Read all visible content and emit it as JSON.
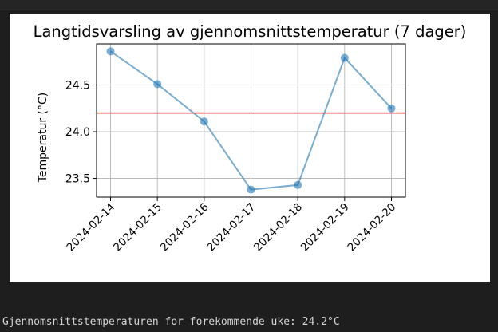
{
  "chart_data": {
    "type": "line",
    "title": "Langtidsvarsling av gjennomsnittstemperatur (7 dager)",
    "xlabel": "",
    "ylabel": "Temperatur (°C)",
    "categories": [
      "2024-02-14",
      "2024-02-15",
      "2024-02-16",
      "2024-02-17",
      "2024-02-18",
      "2024-02-19",
      "2024-02-20"
    ],
    "series": [
      {
        "values": [
          24.86,
          24.51,
          24.11,
          23.38,
          23.43,
          24.79,
          24.25
        ]
      }
    ],
    "reference_line": {
      "y": 24.2
    },
    "ylim": [
      23.3,
      24.94
    ],
    "yticks": [
      "23.5",
      "24.0",
      "24.5"
    ],
    "ytick_values": [
      23.5,
      24.0,
      24.5
    ],
    "grid": true,
    "colors": {
      "series": "#1f77b4",
      "reference_line": "#e41a1c"
    }
  },
  "output": {
    "text": "Gjennomsnittstemperaturen for forekommende uke: 24.2°C"
  }
}
